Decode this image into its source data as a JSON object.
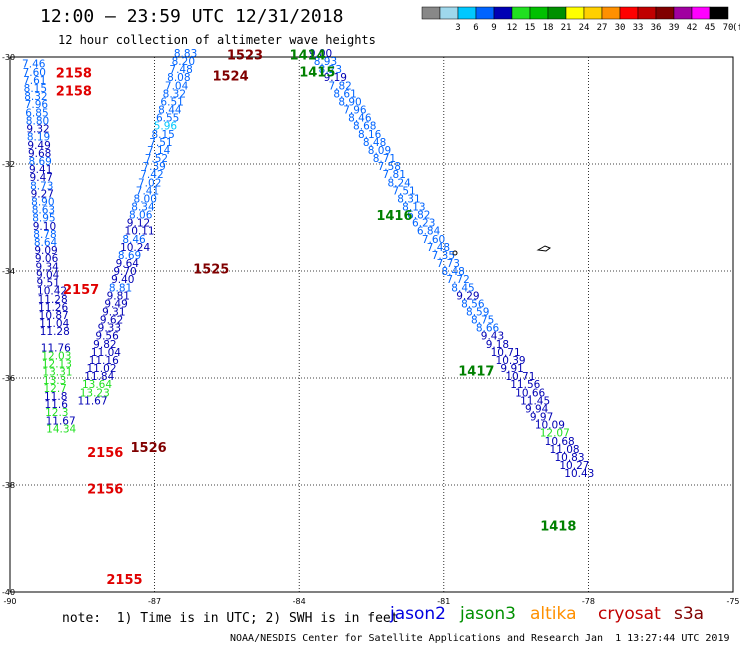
{
  "header": {
    "title": "12:00 – 23:59 UTC 12/31/2018",
    "subtitle": "12 hour collection of altimeter wave heights"
  },
  "legend": {
    "unit_label": "(ft)",
    "bins": [
      {
        "label": "",
        "color": "#888888"
      },
      {
        "label": "3",
        "color": "#9fd8ec"
      },
      {
        "label": "6",
        "color": "#00c8ff"
      },
      {
        "label": "9",
        "color": "#0064ff"
      },
      {
        "label": "12",
        "color": "#0000b4"
      },
      {
        "label": "15",
        "color": "#20e020"
      },
      {
        "label": "18",
        "color": "#00c000"
      },
      {
        "label": "21",
        "color": "#009000"
      },
      {
        "label": "24",
        "color": "#ffff00"
      },
      {
        "label": "27",
        "color": "#ffd000"
      },
      {
        "label": "30",
        "color": "#ff9000"
      },
      {
        "label": "33",
        "color": "#ff0000"
      },
      {
        "label": "36",
        "color": "#c00000"
      },
      {
        "label": "39",
        "color": "#800000"
      },
      {
        "label": "42",
        "color": "#a000a0"
      },
      {
        "label": "45",
        "color": "#ff00ff"
      },
      {
        "label": "70",
        "color": "#000000"
      }
    ]
  },
  "map": {
    "x_ticks": [
      "-90",
      "-87",
      "-84",
      "-81",
      "-78",
      "-75"
    ],
    "y_ticks": [
      "-30",
      "-32",
      "-34",
      "-36",
      "-38",
      "-40"
    ],
    "lon_range": [
      -90,
      -75
    ],
    "lat_range": [
      -40,
      -30
    ]
  },
  "tracks": [
    {
      "name": "track-west",
      "lon": -89.75,
      "lat_start": -30.2,
      "lat_step": 0.1515,
      "values": [
        "7.46",
        "7.60",
        "7.61",
        "8.15",
        "8.32",
        "7.96",
        "6.85",
        "8.80",
        "9.32",
        "8.19",
        "9.49",
        "9.68",
        "8.69",
        "9.41",
        "9.47",
        "8.73",
        "9.27",
        "8.90",
        "8.63",
        "8.95",
        "9.10",
        "8.78",
        "8.64",
        "9.09",
        "9.06",
        "9.34",
        "9.04",
        "9.51",
        "10.42",
        "11.28",
        "11.26",
        "10.87",
        "11.04",
        "11.28",
        "",
        "11.76",
        "12.03",
        "12.13",
        "13.31",
        "13.3",
        "12.7",
        "11.8",
        "11.6",
        "12.3",
        "11.67",
        "14.34"
      ]
    },
    {
      "name": "track-middle-descending",
      "lon": -86.6,
      "lat_start": -30.0,
      "lat_step": 0.151,
      "values": [
        "8.83",
        "8.20",
        "7.48",
        "8.08",
        "7.04",
        "8.32",
        "6.51",
        "8.44",
        "6.55",
        "5.96",
        "8.15",
        "7.51",
        "7.14",
        "7.52",
        "7.39",
        "7.42",
        "7.02",
        "7.41",
        "8.00",
        "8.34",
        "8.06",
        "9.12",
        "10.11",
        "8.46",
        "10.24",
        "8.69",
        "9.64",
        "9.70",
        "9.40",
        "8.81",
        "9.81",
        "9.49",
        "9.31",
        "9.62",
        "9.33",
        "9.56",
        "9.82",
        "11.04",
        "11.16",
        "11.02",
        "11.84",
        "13.64",
        "13.23",
        "11.67"
      ]
    },
    {
      "name": "track-east",
      "lon": -83.8,
      "lat_start": -30.0,
      "lat_step": 0.151,
      "values": [
        "9.00",
        "8.93",
        "8.23",
        "9.19",
        "7.82",
        "8.61",
        "8.90",
        "7.96",
        "8.46",
        "8.68",
        "8.16",
        "8.48",
        "8.09",
        "8.71",
        "7.58",
        "7.81",
        "8.24",
        "7.51",
        "8.31",
        "8.13",
        "6.82",
        "6.23",
        "6.84",
        "7.60",
        "7.48",
        "7.35",
        "7.73",
        "8.48",
        "7.72",
        "8.45",
        "9.29",
        "8.56",
        "8.59",
        "8.75",
        "8.66",
        "9.43",
        "9.18",
        "10.71",
        "10.39",
        "9.91",
        "10.71",
        "11.56",
        "10.66",
        "11.45",
        "9.94",
        "9.97",
        "10.09",
        "12.07",
        "10.68",
        "11.08",
        "10.83",
        "10.27",
        "10.43"
      ]
    }
  ],
  "time_labels": [
    {
      "text": "2158",
      "lon": -89.05,
      "lat": -30.38,
      "color": "#e00000"
    },
    {
      "text": "2158",
      "lon": -89.05,
      "lat": -30.72,
      "color": "#e00000"
    },
    {
      "text": "1523",
      "lon": -85.5,
      "lat": -30.05,
      "color": "#800000"
    },
    {
      "text": "1414",
      "lon": -84.2,
      "lat": -30.05,
      "color": "#008000"
    },
    {
      "text": "1524",
      "lon": -85.8,
      "lat": -30.44,
      "color": "#800000"
    },
    {
      "text": "1415",
      "lon": -84.0,
      "lat": -30.36,
      "color": "#008000"
    },
    {
      "text": "1416",
      "lon": -82.4,
      "lat": -33.05,
      "color": "#008000"
    },
    {
      "text": "1525",
      "lon": -86.2,
      "lat": -34.05,
      "color": "#800000"
    },
    {
      "text": "2157",
      "lon": -88.9,
      "lat": -34.43,
      "color": "#e00000"
    },
    {
      "text": "1417",
      "lon": -80.7,
      "lat": -35.95,
      "color": "#008000"
    },
    {
      "text": "1526",
      "lon": -87.5,
      "lat": -37.38,
      "color": "#800000"
    },
    {
      "text": "2156",
      "lon": -88.4,
      "lat": -37.48,
      "color": "#e00000"
    },
    {
      "text": "2156",
      "lon": -88.4,
      "lat": -38.16,
      "color": "#e00000"
    },
    {
      "text": "1418",
      "lon": -79.0,
      "lat": -38.85,
      "color": "#008000"
    },
    {
      "text": "2155",
      "lon": -88.0,
      "lat": -39.85,
      "color": "#e00000"
    }
  ],
  "footer": {
    "note": "note:  1) Time is in UTC; 2) SWH is in feet",
    "satellites": [
      {
        "name": "jason2",
        "color": "#0000e0"
      },
      {
        "name": "jason3",
        "color": "#009000"
      },
      {
        "name": "altika",
        "color": "#ff9000"
      },
      {
        "name": "cryosat",
        "color": "#c00000"
      },
      {
        "name": "s3a",
        "color": "#800000"
      }
    ],
    "credit": "NOAA/NESDIS Center for Satellite Applications and Research",
    "timestamp": "Jan  1 13:27:44 UTC 2019"
  }
}
